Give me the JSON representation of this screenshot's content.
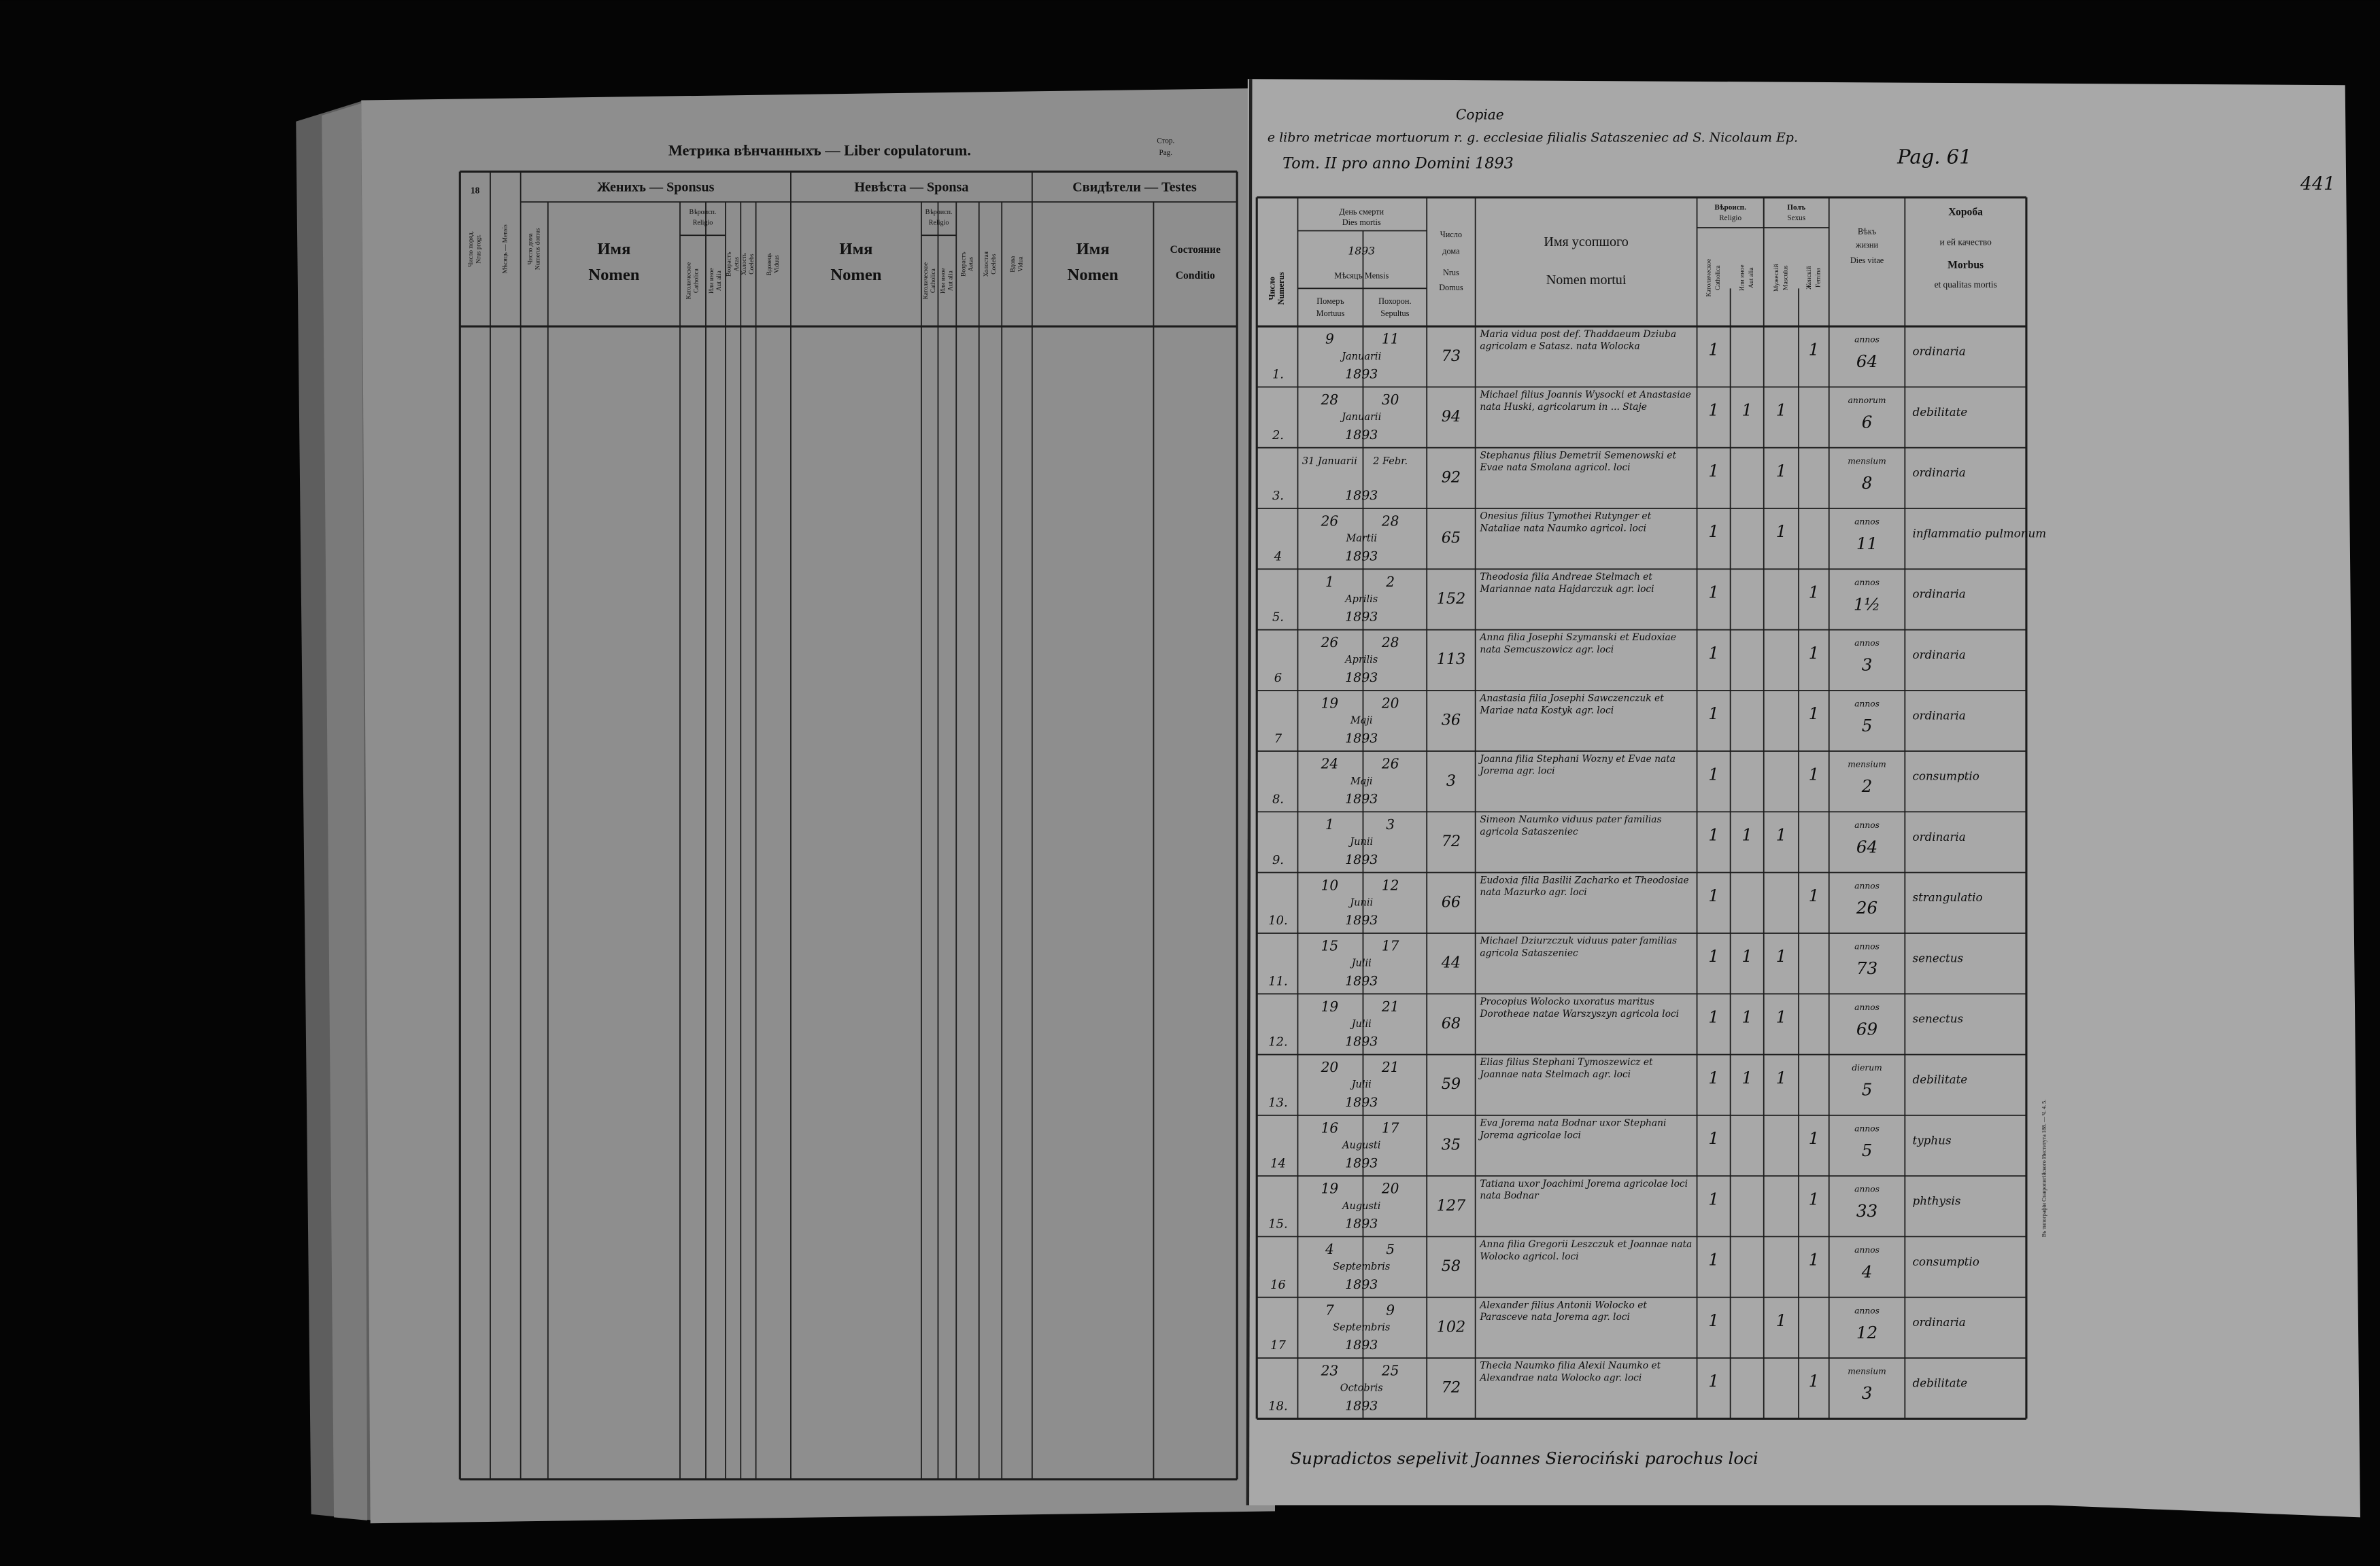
{
  "left_page": {
    "title": "Метрика вѣнчанныхъ — Liber copulatorum.",
    "page_label": [
      "Стор.",
      "Pag."
    ],
    "page_number": "18",
    "groups": [
      "Женихъ — Sponsus",
      "Невѣста — Sponsa",
      "Свидѣтели — Testes"
    ],
    "religio": [
      "Вѣроисп.",
      "Religio"
    ],
    "columns": [
      [
        "Число поряд.",
        "Nrus progr."
      ],
      [
        "Мѣсяць — Mensis"
      ],
      [
        "Число дома",
        "Numerus domus"
      ],
      [
        "Имя",
        "Nomen"
      ],
      [
        "Католическое",
        "Catholica"
      ],
      [
        "Или иное",
        "Aut alia"
      ],
      [
        "Возрастъ",
        "Aetas"
      ],
      [
        "Холость",
        "Coelebs"
      ],
      [
        "Вдовець",
        "Viduus"
      ],
      [
        "Имя",
        "Nomen"
      ],
      [
        "Католическое",
        "Catholica"
      ],
      [
        "Или иное",
        "Aut alia"
      ],
      [
        "Возрастъ",
        "Aetas"
      ],
      [
        "Холостая",
        "Coelebs"
      ],
      [
        "Вдова",
        "Vidua"
      ],
      [
        "Имя",
        "Nomen"
      ],
      [
        "Состояние",
        "Conditio"
      ]
    ]
  },
  "right_page": {
    "heading": [
      "Copiae",
      "e libro metricae mortuorum r. g. ecclesiae filialis Sataszeniec ad S. Nicolaum Ep.",
      "Tom. II   pro anno Domini 1893",
      "Pag. 61"
    ],
    "folio": "441",
    "dies_mortis": [
      "День смерти",
      "Dies mortis",
      "1893",
      "Мѣсяцъ Mensis"
    ],
    "religio": [
      "Вѣроисп.",
      "Religio"
    ],
    "sexus": [
      "Полъ",
      "Sexus"
    ],
    "columns": [
      [
        "Число",
        "Numerus"
      ],
      [
        "Померъ",
        "Mortuus"
      ],
      [
        "Похорон.",
        "Sepultus"
      ],
      [
        "Число",
        "дома",
        "Nrus",
        "Domus"
      ],
      [
        "Имя усопшого",
        "Nomen mortui"
      ],
      [
        "Католическое",
        "Catholica"
      ],
      [
        "Или иное",
        "Aut alia"
      ],
      [
        "Мужескій",
        "Masculus"
      ],
      [
        "Женскій",
        "Femina"
      ],
      [
        "Вѣкъ",
        "жизни",
        "Dies vitae"
      ],
      [
        "Хороба",
        "и ей качество",
        "Morbus",
        "et qualitas mortis"
      ]
    ],
    "rows": [
      {
        "n": "1.",
        "died": "9",
        "buried": "11",
        "month": "Januarii",
        "year": "1893",
        "house": 73,
        "name": "Maria vidua post def. Thaddaeum Dziuba agricolam e Satasz. nata Wolocka",
        "cath": 1,
        "female": 1,
        "age_unit": "annos",
        "age": "64",
        "morbus": "ordinaria"
      },
      {
        "n": "2.",
        "died": "28",
        "buried": "30",
        "month": "Januarii",
        "year": "1893",
        "house": 94,
        "name": "Michael filius Joannis Wysocki et Anastasiae nata Huski, agricolarum in ... Staje",
        "cath": 1,
        "other": 1,
        "male": 1,
        "age_unit": "annorum",
        "age": "6",
        "morbus": "debilitate"
      },
      {
        "n": "3.",
        "died": "31 Januarii",
        "buried": "2 Febr.",
        "year": "1893",
        "house": 92,
        "name": "Stephanus filius Demetrii Semenowski et Evae nata Smolana agricol. loci",
        "cath": 1,
        "male": 1,
        "age_unit": "mensium",
        "age": "8",
        "morbus": "ordinaria"
      },
      {
        "n": "4",
        "died": "26",
        "buried": "28",
        "month": "Martii",
        "year": "1893",
        "house": 65,
        "name": "Onesius filius Tymothei Rutynger et Nataliae nata Naumko agricol. loci",
        "cath": 1,
        "male": 1,
        "age_unit": "annos",
        "age": "11",
        "morbus": "inflammatio pulmonum"
      },
      {
        "n": "5.",
        "died": "1",
        "buried": "2",
        "month": "Aprilis",
        "year": "1893",
        "house": 152,
        "name": "Theodosia filia Andreae Stelmach et Mariannae nata Hajdarczuk agr. loci",
        "cath": 1,
        "female": 1,
        "age_unit": "annos",
        "age": "1½",
        "morbus": "ordinaria"
      },
      {
        "n": "6",
        "died": "26",
        "buried": "28",
        "month": "Aprilis",
        "year": "1893",
        "house": 113,
        "name": "Anna filia Josephi Szymanski et Eudoxiae nata Semcuszowicz agr. loci",
        "cath": 1,
        "female": 1,
        "age_unit": "annos",
        "age": "3",
        "morbus": "ordinaria"
      },
      {
        "n": "7",
        "died": "19",
        "buried": "20",
        "month": "Maji",
        "year": "1893",
        "house": 36,
        "name": "Anastasia filia Josephi Sawczenczuk et Mariae nata Kostyk agr. loci",
        "cath": 1,
        "female": 1,
        "age_unit": "annos",
        "age": "5",
        "morbus": "ordinaria"
      },
      {
        "n": "8.",
        "died": "24",
        "buried": "26",
        "month": "Maji",
        "year": "1893",
        "house": 3,
        "name": "Joanna filia Stephani Wozny et Evae nata Jorema agr. loci",
        "cath": 1,
        "female": 1,
        "age_unit": "mensium",
        "age": "2",
        "morbus": "consumptio"
      },
      {
        "n": "9.",
        "died": "1",
        "buried": "3",
        "month": "Junii",
        "year": "1893",
        "house": 72,
        "name": "Simeon Naumko viduus pater familias agricola Sataszeniec",
        "cath": 1,
        "other": 1,
        "male": 1,
        "age_unit": "annos",
        "age": "64",
        "morbus": "ordinaria"
      },
      {
        "n": "10.",
        "died": "10",
        "buried": "12",
        "month": "Junii",
        "year": "1893",
        "house": 66,
        "name": "Eudoxia filia Basilii Zacharko et Theodosiae nata Mazurko agr. loci",
        "cath": 1,
        "female": 1,
        "age_unit": "annos",
        "age": "26",
        "morbus": "strangulatio"
      },
      {
        "n": "11.",
        "died": "15",
        "buried": "17",
        "month": "Julii",
        "year": "1893",
        "house": 44,
        "name": "Michael Dziurzczuk viduus pater familias agricola Sataszeniec",
        "cath": 1,
        "other": 1,
        "male": 1,
        "age_unit": "annos",
        "age": "73",
        "morbus": "senectus"
      },
      {
        "n": "12.",
        "died": "19",
        "buried": "21",
        "month": "Julii",
        "year": "1893",
        "house": 68,
        "name": "Procopius Wolocko uxoratus maritus Dorotheae natae Warszyszyn agricola loci",
        "cath": 1,
        "other": 1,
        "male": 1,
        "age_unit": "annos",
        "age": "69",
        "morbus": "senectus"
      },
      {
        "n": "13.",
        "died": "20",
        "buried": "21",
        "month": "Julii",
        "year": "1893",
        "house": 59,
        "name": "Elias filius Stephani Tymoszewicz et Joannae nata Stelmach agr. loci",
        "cath": 1,
        "other": 1,
        "male": 1,
        "age_unit": "dierum",
        "age": "5",
        "morbus": "debilitate"
      },
      {
        "n": "14",
        "died": "16",
        "buried": "17",
        "month": "Augusti",
        "year": "1893",
        "house": 35,
        "name": "Eva Jorema nata Bodnar uxor Stephani Jorema agricolae loci",
        "cath": 1,
        "female": 1,
        "age_unit": "annos",
        "age": "5",
        "morbus": "typhus"
      },
      {
        "n": "15.",
        "died": "19",
        "buried": "20",
        "month": "Augusti",
        "year": "1893",
        "house": 127,
        "name": "Tatiana uxor Joachimi Jorema agricolae loci nata Bodnar",
        "cath": 1,
        "female": 1,
        "age_unit": "annos",
        "age": "33",
        "morbus": "phthysis"
      },
      {
        "n": "16",
        "died": "4",
        "buried": "5",
        "month": "Septembris",
        "year": "1893",
        "house": 58,
        "name": "Anna filia Gregorii Leszczuk et Joannae nata Wolocko agricol. loci",
        "cath": 1,
        "female": 1,
        "age_unit": "annos",
        "age": "4",
        "morbus": "consumptio"
      },
      {
        "n": "17",
        "died": "7",
        "buried": "9",
        "month": "Septembris",
        "year": "1893",
        "house": 102,
        "name": "Alexander filius Antonii Wolocko et Parasceve nata Jorema agr. loci",
        "cath": 1,
        "male": 1,
        "age_unit": "annos",
        "age": "12",
        "morbus": "ordinaria"
      },
      {
        "n": "18.",
        "died": "23",
        "buried": "25",
        "month": "Octobris",
        "year": "1893",
        "house": 72,
        "name": "Thecla Naumko filia Alexii Naumko et Alexandrae nata Wolocko agr. loci",
        "cath": 1,
        "female": 1,
        "age_unit": "mensium",
        "age": "3",
        "morbus": "debilitate"
      }
    ],
    "footer": "Supradictos sepelivit Joannes Sierociński parochus loci",
    "imprint": "Въ типографіи Ставропигійского Института 188. — Ч. 4. 5."
  }
}
